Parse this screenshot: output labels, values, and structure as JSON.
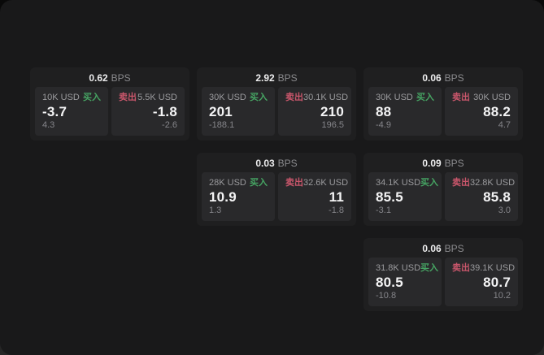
{
  "labels": {
    "bps_unit": "BPS",
    "buy": "买入",
    "sell": "卖出"
  },
  "colors": {
    "buy_green": "#46a463",
    "sell_red": "#c9566b",
    "card_bg": "#1f1f20",
    "panel_bg": "#29292b",
    "page_bg": "#19191a"
  },
  "cards": [
    {
      "spread": "0.62",
      "buy": {
        "size": "10K USD",
        "price": "-3.7",
        "delta": "4.3"
      },
      "sell": {
        "size": "5.5K USD",
        "price": "-1.8",
        "delta": "-2.6"
      }
    },
    {
      "spread": "2.92",
      "buy": {
        "size": "30K USD",
        "price": "201",
        "delta": "-188.1"
      },
      "sell": {
        "size": "30.1K USD",
        "price": "210",
        "delta": "196.5"
      }
    },
    {
      "spread": "0.06",
      "buy": {
        "size": "30K USD",
        "price": "88",
        "delta": "-4.9"
      },
      "sell": {
        "size": "30K USD",
        "price": "88.2",
        "delta": "4.7"
      }
    },
    {
      "spread": "0.03",
      "buy": {
        "size": "28K USD",
        "price": "10.9",
        "delta": "1.3"
      },
      "sell": {
        "size": "32.6K USD",
        "price": "11",
        "delta": "-1.8"
      }
    },
    {
      "spread": "0.09",
      "buy": {
        "size": "34.1K USD",
        "price": "85.5",
        "delta": "-3.1"
      },
      "sell": {
        "size": "32.8K USD",
        "price": "85.8",
        "delta": "3.0"
      }
    },
    {
      "spread": "0.06",
      "buy": {
        "size": "31.8K USD",
        "price": "80.5",
        "delta": "-10.8"
      },
      "sell": {
        "size": "39.1K USD",
        "price": "80.7",
        "delta": "10.2"
      }
    }
  ]
}
